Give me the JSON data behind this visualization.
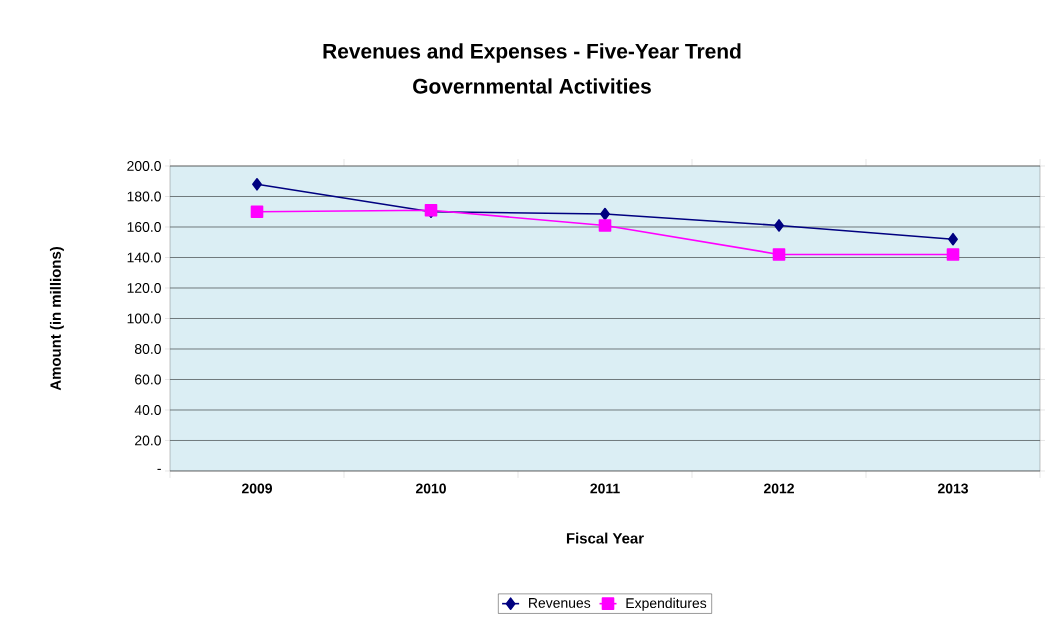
{
  "chart_data": {
    "type": "line",
    "title": "Revenues and Expenses - Five-Year Trend",
    "subtitle": "Governmental Activities",
    "xlabel": "Fiscal Year",
    "ylabel": "Amount (in millions)",
    "categories": [
      "2009",
      "2010",
      "2011",
      "2012",
      "2013"
    ],
    "series": [
      {
        "name": "Revenues",
        "color": "#000080",
        "marker": "diamond",
        "values": [
          188,
          170,
          168.5,
          161,
          152
        ]
      },
      {
        "name": "Expenditures",
        "color": "#ff00ff",
        "marker": "square",
        "values": [
          170,
          171,
          161,
          142,
          142
        ]
      }
    ],
    "ylim": [
      0,
      200
    ],
    "yticks": [
      {
        "value": 0,
        "label": "-"
      },
      {
        "value": 20,
        "label": "20.0"
      },
      {
        "value": 40,
        "label": "40.0"
      },
      {
        "value": 60,
        "label": "60.0"
      },
      {
        "value": 80,
        "label": "80.0"
      },
      {
        "value": 100,
        "label": "100.0"
      },
      {
        "value": 120,
        "label": "120.0"
      },
      {
        "value": 140,
        "label": "140.0"
      },
      {
        "value": 160,
        "label": "160.0"
      },
      {
        "value": 180,
        "label": "180.0"
      },
      {
        "value": 200,
        "label": "200.0"
      }
    ],
    "grid": "y",
    "legend": "bottom",
    "line_style": "solid"
  }
}
